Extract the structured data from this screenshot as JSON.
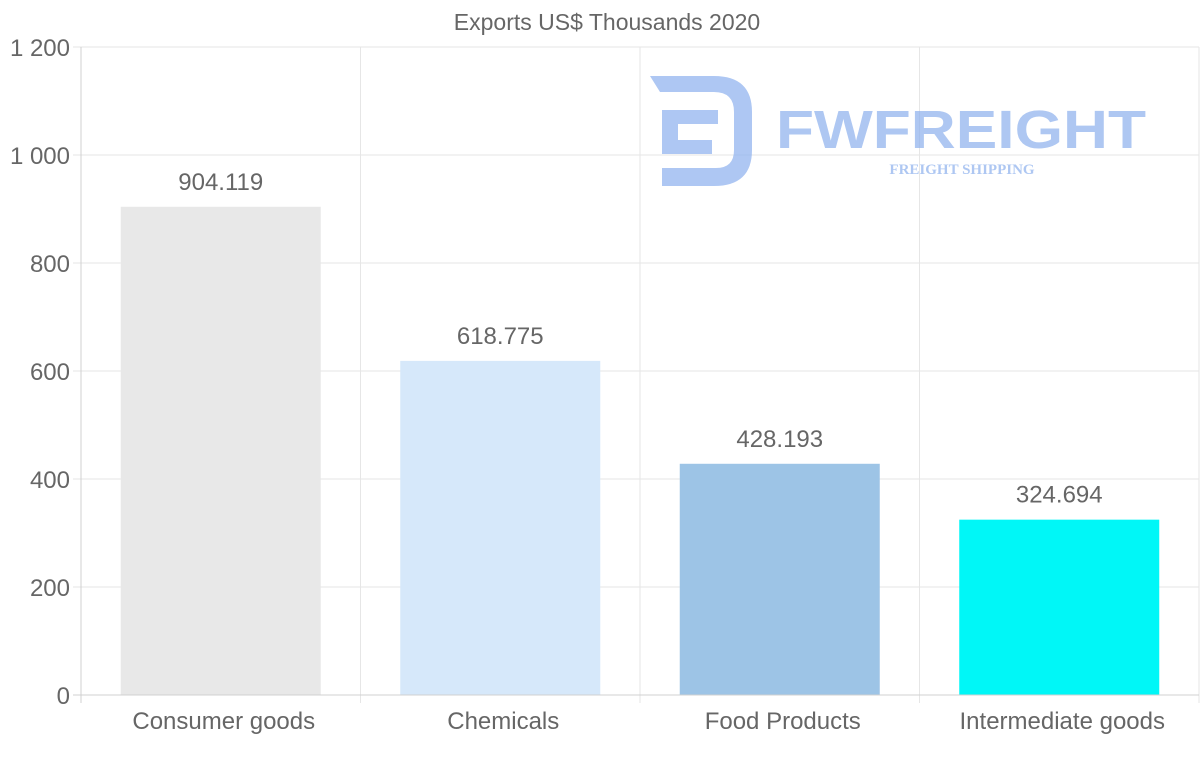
{
  "chart_data": {
    "type": "bar",
    "title": "Exports US$ Thousands 2020",
    "xlabel": "",
    "ylabel": "",
    "categories": [
      "Consumer goods",
      "Chemicals",
      "Food Products",
      "Intermediate goods"
    ],
    "values": [
      904.119,
      618.775,
      428.193,
      324.694
    ],
    "value_labels": [
      "904.119",
      "618.775",
      "428.193",
      "324.694"
    ],
    "colors": [
      "#e8e8e8",
      "#d6e8fa",
      "#9dc4e6",
      "#00f7f7"
    ],
    "ylim": [
      0,
      1200
    ],
    "yticks": [
      0,
      200,
      400,
      600,
      800,
      1000,
      1200
    ],
    "ytick_labels": [
      "0",
      "200",
      "400",
      "600",
      "800",
      "1 000",
      "1 200"
    ],
    "grid": true,
    "legend": "none"
  },
  "watermark": {
    "brand": "FWFREIGHT",
    "tagline": "FREIGHT SHIPPING",
    "color": "#8fb2ee"
  }
}
